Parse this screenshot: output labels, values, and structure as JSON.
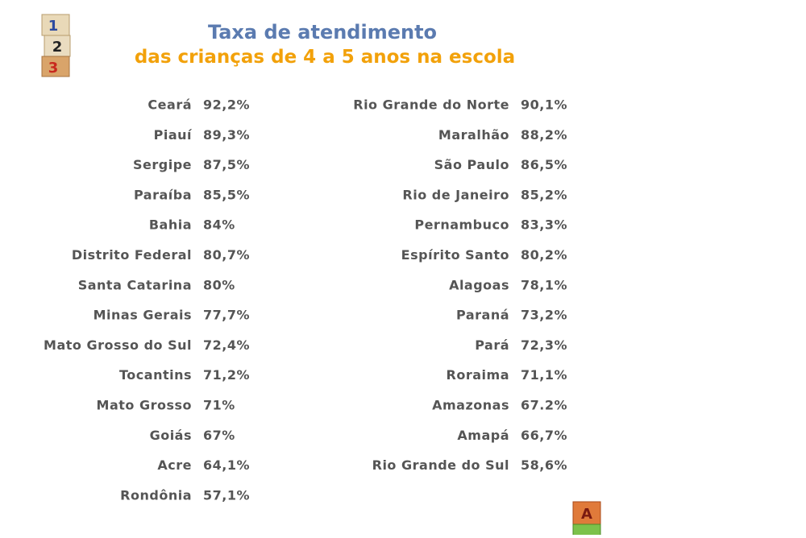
{
  "header": {
    "title": "Taxa de atendimento",
    "subtitle": "das crianças de 4 a 5 anos na escola"
  },
  "columns": [
    {
      "rows": [
        [
          "Ceará",
          "92,2%"
        ],
        [
          "Piauí",
          "89,3%"
        ],
        [
          "Sergipe",
          "87,5%"
        ],
        [
          "Paraíba",
          "85,5%"
        ],
        [
          "Bahia",
          "84%"
        ],
        [
          "Distrito Federal",
          "80,7%"
        ],
        [
          "Santa Catarina",
          "80%"
        ],
        [
          "Minas Gerais",
          "77,7%"
        ],
        [
          "Mato Grosso do Sul",
          "72,4%"
        ],
        [
          "Tocantins",
          "71,2%"
        ],
        [
          "Mato Grosso",
          "71%"
        ],
        [
          "Goiás",
          "67%"
        ],
        [
          "Acre",
          "64,1%"
        ],
        [
          "Rondônia",
          "57,1%"
        ]
      ]
    },
    {
      "rows": [
        [
          "Rio Grande do Norte",
          "90,1%"
        ],
        [
          "Maralhão",
          "88,2%"
        ],
        [
          "São Paulo",
          "86,5%"
        ],
        [
          "Rio de Janeiro",
          "85,2%"
        ],
        [
          "Pernambuco",
          "83,3%"
        ],
        [
          "Espírito Santo",
          "80,2%"
        ],
        [
          "Alagoas",
          "78,1%"
        ],
        [
          "Paraná",
          "73,2%"
        ],
        [
          "Pará",
          "72,3%"
        ],
        [
          "Roraima",
          "71,1%"
        ],
        [
          "Amazonas",
          "67.2%"
        ],
        [
          "Amapá",
          "66,7%"
        ],
        [
          "Rio Grande do Sul",
          "58,6%"
        ]
      ]
    }
  ],
  "decor": {
    "top_blocks": [
      "1",
      "2",
      "3"
    ],
    "bottom_blocks": [
      "A"
    ]
  }
}
